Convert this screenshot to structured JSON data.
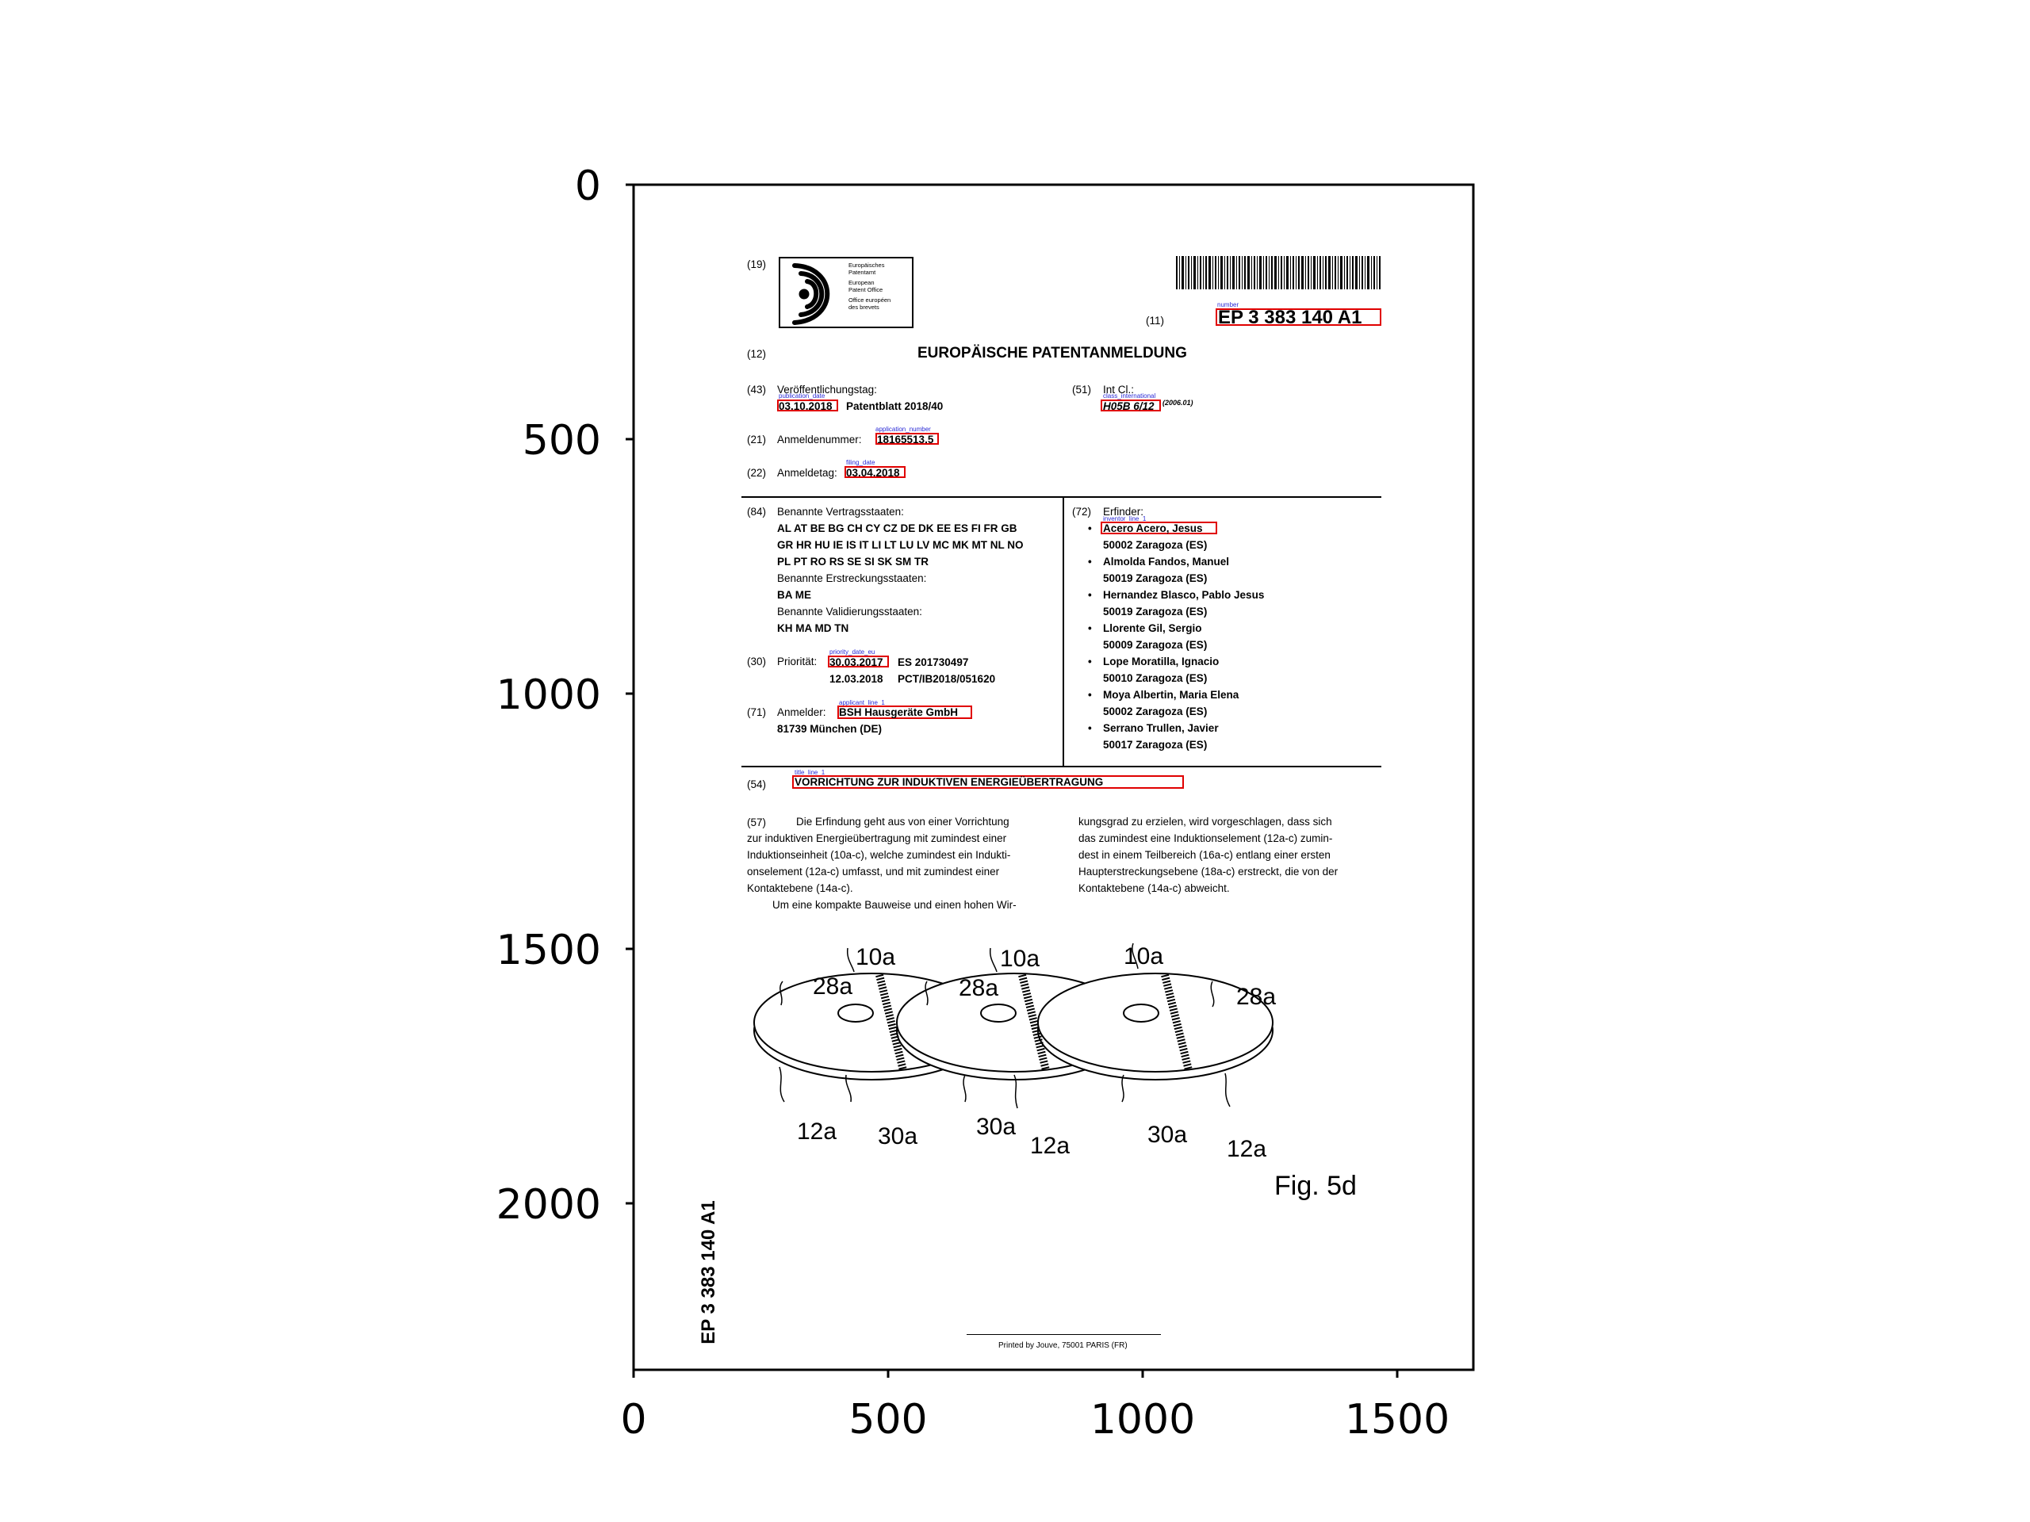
{
  "axes": {
    "y_ticks": [
      "0",
      "500",
      "1000",
      "1500",
      "2000"
    ],
    "x_ticks": [
      "0",
      "500",
      "1000",
      "1500"
    ]
  },
  "header": {
    "code19": "(19)",
    "office_lines": [
      "Europäisches",
      "Patentamt",
      "European",
      "Patent Office",
      "Office européen",
      "des brevets"
    ],
    "code11": "(11)",
    "number": "EP 3 383 140 A1",
    "code12": "(12)",
    "doc_type": "EUROPÄISCHE PATENTANMELDUNG"
  },
  "biblio": {
    "c43": "(43)",
    "pub_label": "Veröffentlichungstag:",
    "pub_date": "03.10.2018",
    "pub_bulletin": "Patentblatt 2018/40",
    "c51": "(51)",
    "intcl_label": "Int Cl.:",
    "intcl_value": "H05B 6/12",
    "intcl_suffix": "(2006.01)",
    "c21": "(21)",
    "appnum_label": "Anmeldenummer:",
    "appnum": "18165513.5",
    "c22": "(22)",
    "filing_label": "Anmeldetag:",
    "filing_date": "03.04.2018",
    "c84": "(84)",
    "states_label": "Benannte Vertragsstaaten:",
    "states_lines": [
      "AL AT BE BG CH CY CZ DE DK EE ES FI FR GB",
      "GR HR HU IE IS IT LI LT LU LV MC MK MT NL NO",
      "PL PT RO RS SE SI SK SM TR"
    ],
    "ext_label": "Benannte Erstreckungsstaaten:",
    "ext_states": "BA ME",
    "val_label": "Benannte Validierungsstaaten:",
    "val_states": "KH MA MD TN",
    "c30": "(30)",
    "prio_label": "Priorität:",
    "prio_date1": "30.03.2017",
    "prio_ref1": "ES 201730497",
    "prio_date2": "12.03.2018",
    "prio_ref2": "PCT/IB2018/051620",
    "c71": "(71)",
    "applicant_label": "Anmelder:",
    "applicant": "BSH Hausgeräte GmbH",
    "applicant_city": "81739 München (DE)",
    "c72": "(72)",
    "inventors_label": "Erfinder:",
    "inventors": [
      {
        "name": "Acero Acero, Jesus",
        "city": "50002 Zaragoza (ES)"
      },
      {
        "name": "Almolda Fandos, Manuel",
        "city": "50019 Zaragoza (ES)"
      },
      {
        "name": "Hernandez Blasco, Pablo Jesus",
        "city": "50019 Zaragoza (ES)"
      },
      {
        "name": "Llorente Gil, Sergio",
        "city": "50009 Zaragoza (ES)"
      },
      {
        "name": "Lope Moratilla, Ignacio",
        "city": "50010 Zaragoza (ES)"
      },
      {
        "name": "Moya Albertin, Maria Elena",
        "city": "50002 Zaragoza (ES)"
      },
      {
        "name": "Serrano Trullen, Javier",
        "city": "50017 Zaragoza (ES)"
      }
    ],
    "c54": "(54)",
    "title": "VORRICHTUNG ZUR INDUKTIVEN ENERGIEÜBERTRAGUNG"
  },
  "labels": {
    "number": "number",
    "publication_date": "publication_date",
    "class_international": "class_international",
    "application_number": "application_number",
    "filing_date": "filing_date",
    "inventor_line": "inventor_line_1",
    "priority_date": "priority_date_eu",
    "applicant_line": "applicant_line_1",
    "title_line": "title_line_1"
  },
  "abstract": {
    "code": "(57)",
    "left_lines": [
      "Die Erfindung geht aus von einer Vorrichtung",
      "zur induktiven Energieübertragung mit zumindest einer",
      "Induktionseinheit (10a-c), welche zumindest ein Indukti-",
      "onselement (12a-c) umfasst, und mit zumindest einer",
      "Kontaktebene (14a-c).",
      "Um eine kompakte Bauweise und einen hohen Wir-"
    ],
    "right_lines": [
      "kungsgrad zu erzielen, wird vorgeschlagen, dass sich",
      "das zumindest eine Induktionselement (12a-c) zumin-",
      "dest in einem Teilbereich (16a-c) entlang einer ersten",
      "Haupterstreckungsebene (18a-c) erstreckt, die von der",
      "Kontaktebene (14a-c) abweicht."
    ]
  },
  "figure": {
    "refs": [
      "10a",
      "28a",
      "10a",
      "28a",
      "10a",
      "28a",
      "12a",
      "30a",
      "30a",
      "12a",
      "30a",
      "12a"
    ],
    "caption": "Fig. 5d"
  },
  "side_number": "EP 3 383 140 A1",
  "footer": "Printed by Jouve, 75001 PARIS (FR)"
}
